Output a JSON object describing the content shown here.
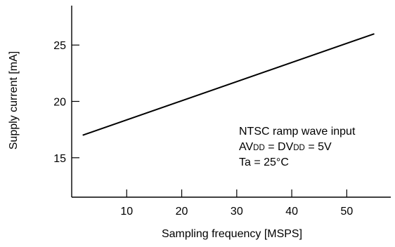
{
  "chart_data": {
    "type": "line",
    "title": "",
    "xlabel": "Sampling frequency [MSPS]",
    "ylabel": "Supply current [mA]",
    "xlim": [
      0,
      58
    ],
    "ylim": [
      11.5,
      28.5
    ],
    "xticks": [
      10,
      20,
      30,
      40,
      50
    ],
    "yticks": [
      15,
      20,
      25
    ],
    "grid": false,
    "series": [
      {
        "x": [
          2,
          55
        ],
        "y": [
          17,
          26
        ],
        "color": "#000000"
      }
    ],
    "annotations": {
      "line1": "NTSC ramp wave input",
      "line2": {
        "p1": "AV",
        "s1": "DD",
        "p2": " = DV",
        "s2": "DD",
        "p3": " = 5V"
      },
      "line3": "Ta = 25°C"
    }
  }
}
